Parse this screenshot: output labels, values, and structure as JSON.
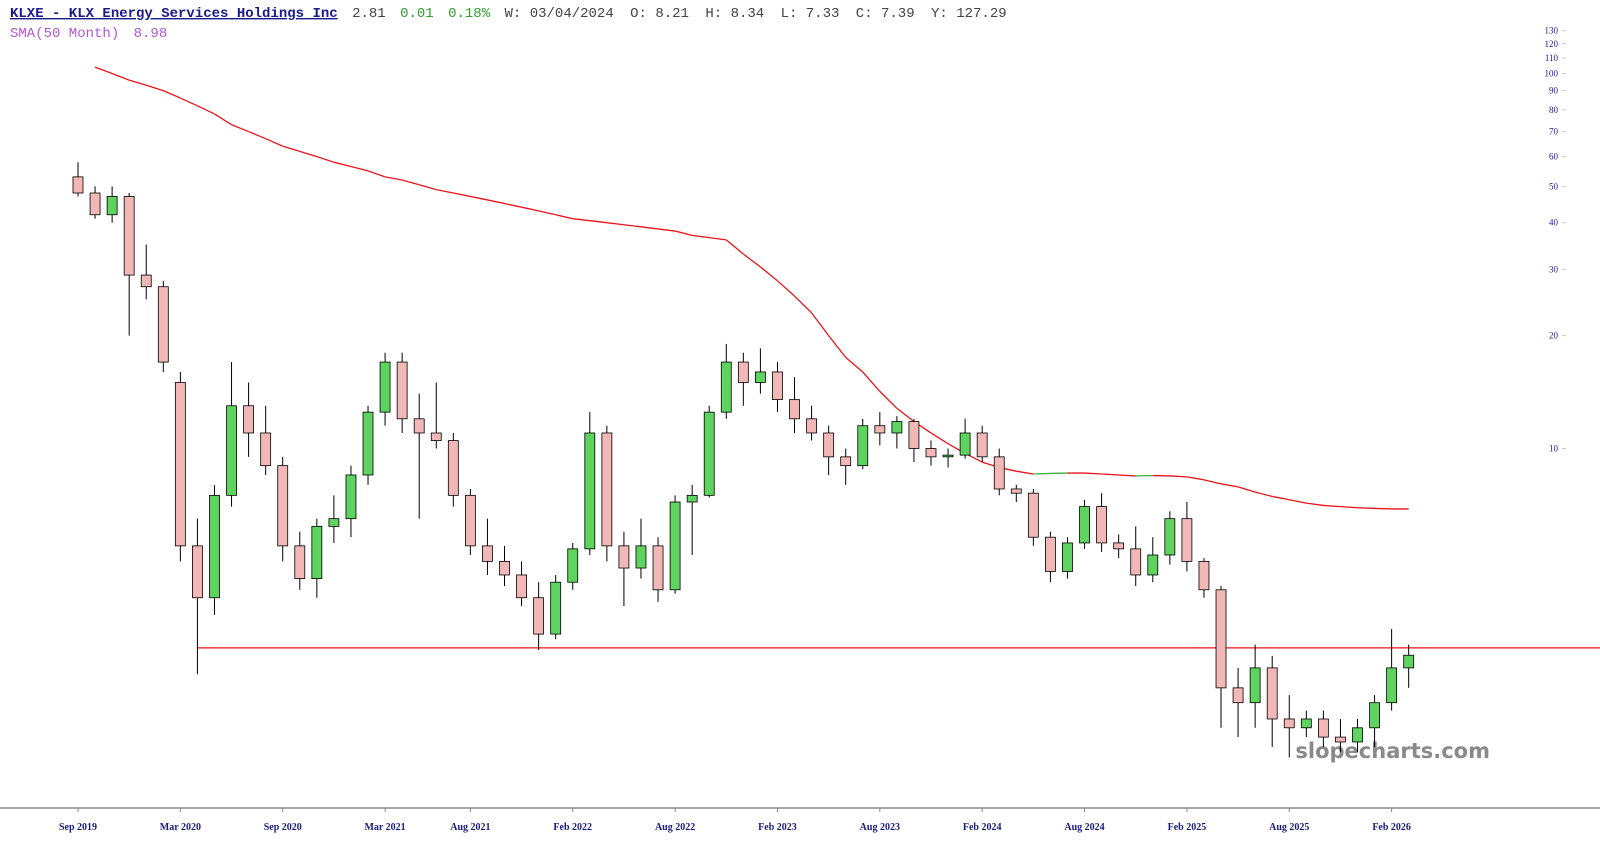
{
  "header": {
    "title": "KLXE - KLX Energy Services Holdings Inc",
    "last": "2.81",
    "change": "0.01",
    "change_pct": "0.18%",
    "date": "W: 03/04/2024",
    "open": "O:  8.21",
    "high": "H:  8.34",
    "low": "L:  7.33",
    "close": "C:  7.39",
    "year": "Y: 127.29",
    "sma_label": "SMA(50 Month)",
    "sma_value": "8.98"
  },
  "chart_data": {
    "type": "candlestick",
    "x": [
      "Sep 2019",
      "Oct 2019",
      "Nov 2019",
      "Dec 2019",
      "Jan 2020",
      "Feb 2020",
      "Mar 2020",
      "Apr 2020",
      "May 2020",
      "Jun 2020",
      "Jul 2020",
      "Aug 2020",
      "Sep 2020",
      "Oct 2020",
      "Nov 2020",
      "Dec 2020",
      "Jan 2021",
      "Feb 2021",
      "Mar 2021",
      "Apr 2021",
      "May 2021",
      "Jun 2021",
      "Jul 2021",
      "Aug 2021",
      "Sep 2021",
      "Oct 2021",
      "Nov 2021",
      "Dec 2021",
      "Jan 2022",
      "Feb 2022",
      "Mar 2022",
      "Apr 2022",
      "May 2022",
      "Jun 2022",
      "Jul 2022",
      "Aug 2022",
      "Sep 2022",
      "Oct 2022",
      "Nov 2022",
      "Dec 2022",
      "Jan 2023",
      "Feb 2023",
      "Mar 2023",
      "Apr 2023",
      "May 2023",
      "Jun 2023",
      "Jul 2023",
      "Aug 2023",
      "Sep 2023",
      "Oct 2023",
      "Nov 2023",
      "Dec 2023",
      "Jan 2024",
      "Feb 2024",
      "Mar 2024",
      "Apr 2024",
      "May 2024",
      "Jun 2024",
      "Jul 2024",
      "Aug 2024",
      "Sep 2024",
      "Oct 2024",
      "Nov 2024",
      "Dec 2024",
      "Jan 2025",
      "Feb 2025",
      "Mar 2025",
      "Apr 2025",
      "May 2025",
      "Jun 2025",
      "Jul 2025",
      "Aug 2025",
      "Sep 2025",
      "Oct 2025",
      "Nov 2025",
      "Dec 2025",
      "Jan 2026",
      "Feb 2026",
      "Mar 2026"
    ],
    "open": [
      53,
      48,
      42,
      47,
      29,
      27,
      15,
      5.5,
      4.0,
      7.5,
      13,
      11,
      9,
      5.5,
      4.5,
      6.2,
      6.5,
      8.5,
      12.5,
      17,
      12,
      11,
      10.5,
      7.5,
      5.5,
      5,
      4.6,
      4.0,
      3.2,
      4.4,
      5.4,
      11,
      5.5,
      4.8,
      5.5,
      4.2,
      7.2,
      7.5,
      12.5,
      17,
      15,
      16,
      13.5,
      12,
      11,
      9.5,
      9,
      11.5,
      11,
      11.8,
      10,
      9.5,
      9.6,
      11,
      9.5,
      7.8,
      7.6,
      5.8,
      4.7,
      5.6,
      7,
      5.6,
      5.4,
      4.6,
      5.2,
      6.5,
      5,
      4.2,
      2.3,
      2.1,
      2.6,
      1.9,
      1.8,
      1.9,
      1.7,
      1.65,
      1.8,
      2.1,
      2.6
    ],
    "high": [
      58,
      50,
      50,
      48,
      35,
      28,
      16,
      6.5,
      8,
      17,
      15,
      13,
      9.5,
      6,
      6.5,
      7.5,
      9,
      13,
      18,
      18,
      14,
      15,
      11,
      7.8,
      6.5,
      5.5,
      5,
      4.4,
      4.6,
      5.6,
      12.5,
      11.5,
      6,
      6.5,
      5.8,
      7.5,
      8,
      13,
      19,
      18,
      18.5,
      17,
      15.5,
      13,
      11.5,
      10,
      12,
      12.5,
      12.2,
      12,
      10.5,
      10,
      12,
      11.5,
      10,
      8,
      7.8,
      6,
      5.8,
      7.3,
      7.6,
      5.9,
      6.2,
      5.8,
      6.8,
      7.2,
      5.1,
      4.3,
      2.6,
      3.0,
      2.8,
      2.2,
      2.0,
      2.0,
      1.9,
      1.9,
      2.2,
      3.3,
      3.0
    ],
    "low": [
      47,
      41,
      40,
      20,
      25,
      16,
      5,
      2.5,
      3.6,
      7,
      9.5,
      8.5,
      5,
      4.2,
      4.0,
      5.6,
      5.8,
      8,
      11.5,
      11,
      6.5,
      10,
      7,
      5.2,
      4.6,
      4.3,
      3.8,
      2.9,
      3.1,
      4.2,
      5.2,
      5,
      3.8,
      4.5,
      3.9,
      4.1,
      5.2,
      7.4,
      12,
      13,
      14,
      12.5,
      11,
      10.5,
      8.5,
      8,
      8.8,
      10.2,
      10,
      9.2,
      9,
      8.9,
      9.4,
      9.2,
      7.5,
      7.2,
      5.5,
      4.4,
      4.5,
      5.4,
      5.3,
      5.1,
      4.3,
      4.4,
      4.9,
      4.7,
      4,
      1.8,
      1.7,
      1.8,
      1.6,
      1.5,
      1.7,
      1.6,
      1.55,
      1.55,
      1.6,
      2.0,
      2.3
    ],
    "close": [
      48,
      42,
      47,
      29,
      27,
      17,
      5.5,
      4.0,
      7.5,
      13,
      11,
      9,
      5.5,
      4.5,
      6.2,
      6.5,
      8.5,
      12.5,
      17,
      12,
      11,
      10.5,
      7.5,
      5.5,
      5,
      4.6,
      4.0,
      3.2,
      4.4,
      5.4,
      11,
      5.5,
      4.8,
      5.5,
      4.2,
      7.2,
      7.5,
      12.5,
      17,
      15,
      16,
      13.5,
      12,
      11,
      9.5,
      9,
      11.5,
      11,
      11.8,
      10,
      9.5,
      9.6,
      11,
      9.5,
      7.8,
      7.6,
      5.8,
      4.7,
      5.6,
      7,
      5.6,
      5.4,
      4.6,
      5.2,
      6.5,
      5,
      4.2,
      2.3,
      2.1,
      2.6,
      1.9,
      1.8,
      1.9,
      1.7,
      1.65,
      1.8,
      2.1,
      2.6,
      2.81
    ],
    "up_color": "#5fd35f",
    "down_color": "#f2b8b8",
    "wick_color": "#000000",
    "log_scale": true,
    "ylim": [
      1.1,
      157
    ],
    "yticks": [
      10,
      20,
      30,
      40,
      50,
      60,
      70,
      80,
      90,
      100,
      110,
      120,
      130
    ],
    "xticks": [
      "Sep 2019",
      "Mar 2020",
      "Sep 2020",
      "Mar 2021",
      "Aug 2021",
      "Feb 2022",
      "Aug 2022",
      "Feb 2023",
      "Aug 2023",
      "Feb 2024",
      "Aug 2024",
      "Feb 2025",
      "Aug 2025",
      "Feb 2026"
    ],
    "sma": {
      "values": [
        null,
        104,
        100,
        96,
        93,
        90,
        86,
        82,
        78,
        73,
        70,
        67,
        64,
        62,
        60,
        58,
        56.5,
        55,
        53,
        52,
        50.5,
        49,
        48,
        47,
        46,
        45,
        44,
        43,
        42,
        41,
        40.5,
        40,
        39.5,
        39,
        38.5,
        38,
        37,
        36.5,
        36,
        33,
        30.5,
        28,
        25.5,
        23,
        20,
        17.5,
        16,
        14.2,
        12.8,
        11.8,
        11,
        10.3,
        9.7,
        9.2,
        8.9,
        8.7,
        8.55,
        8.58,
        8.6,
        8.6,
        8.55,
        8.5,
        8.45,
        8.47,
        8.45,
        8.4,
        8.25,
        8.05,
        7.9,
        7.65,
        7.45,
        7.3,
        7.15,
        7.05,
        7.0,
        6.95,
        6.92,
        6.9,
        6.9
      ],
      "color": "#e8141a",
      "rising_color": "#3cb043"
    },
    "hline": {
      "value": 2.94,
      "from": "Apr 2020",
      "color": "#e8141a"
    },
    "watermark": "slopecharts.com"
  }
}
